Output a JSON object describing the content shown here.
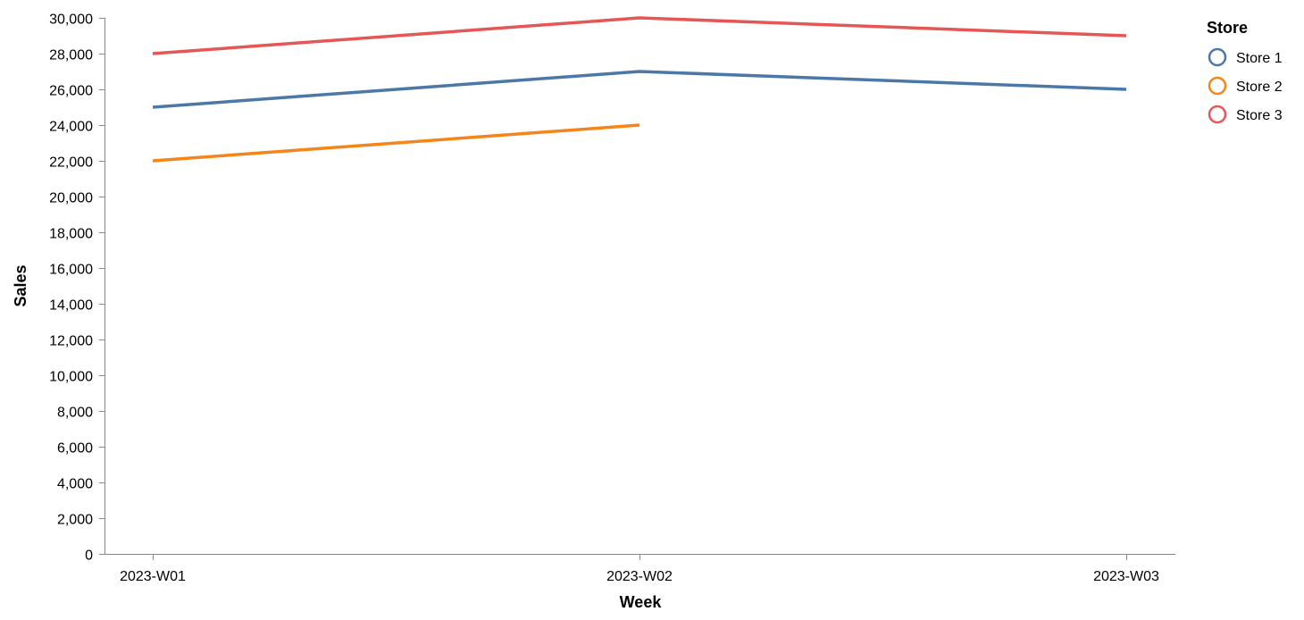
{
  "chart_data": {
    "type": "line",
    "categories": [
      "2023-W01",
      "2023-W02",
      "2023-W03"
    ],
    "xlabel": "Week",
    "ylabel": "Sales",
    "ylim": [
      0,
      30000
    ],
    "yticks": [
      0,
      2000,
      4000,
      6000,
      8000,
      10000,
      12000,
      14000,
      16000,
      18000,
      20000,
      22000,
      24000,
      26000,
      28000,
      30000
    ],
    "grid": false,
    "legend_title": "Store",
    "legend_position": "top-right",
    "series": [
      {
        "name": "Store 1",
        "color": "#4c78a8",
        "values": [
          25000,
          27000,
          26000
        ]
      },
      {
        "name": "Store 2",
        "color": "#f58518",
        "values": [
          22000,
          24000,
          null
        ]
      },
      {
        "name": "Store 3",
        "color": "#e45756",
        "values": [
          28000,
          30000,
          29000
        ]
      }
    ]
  }
}
